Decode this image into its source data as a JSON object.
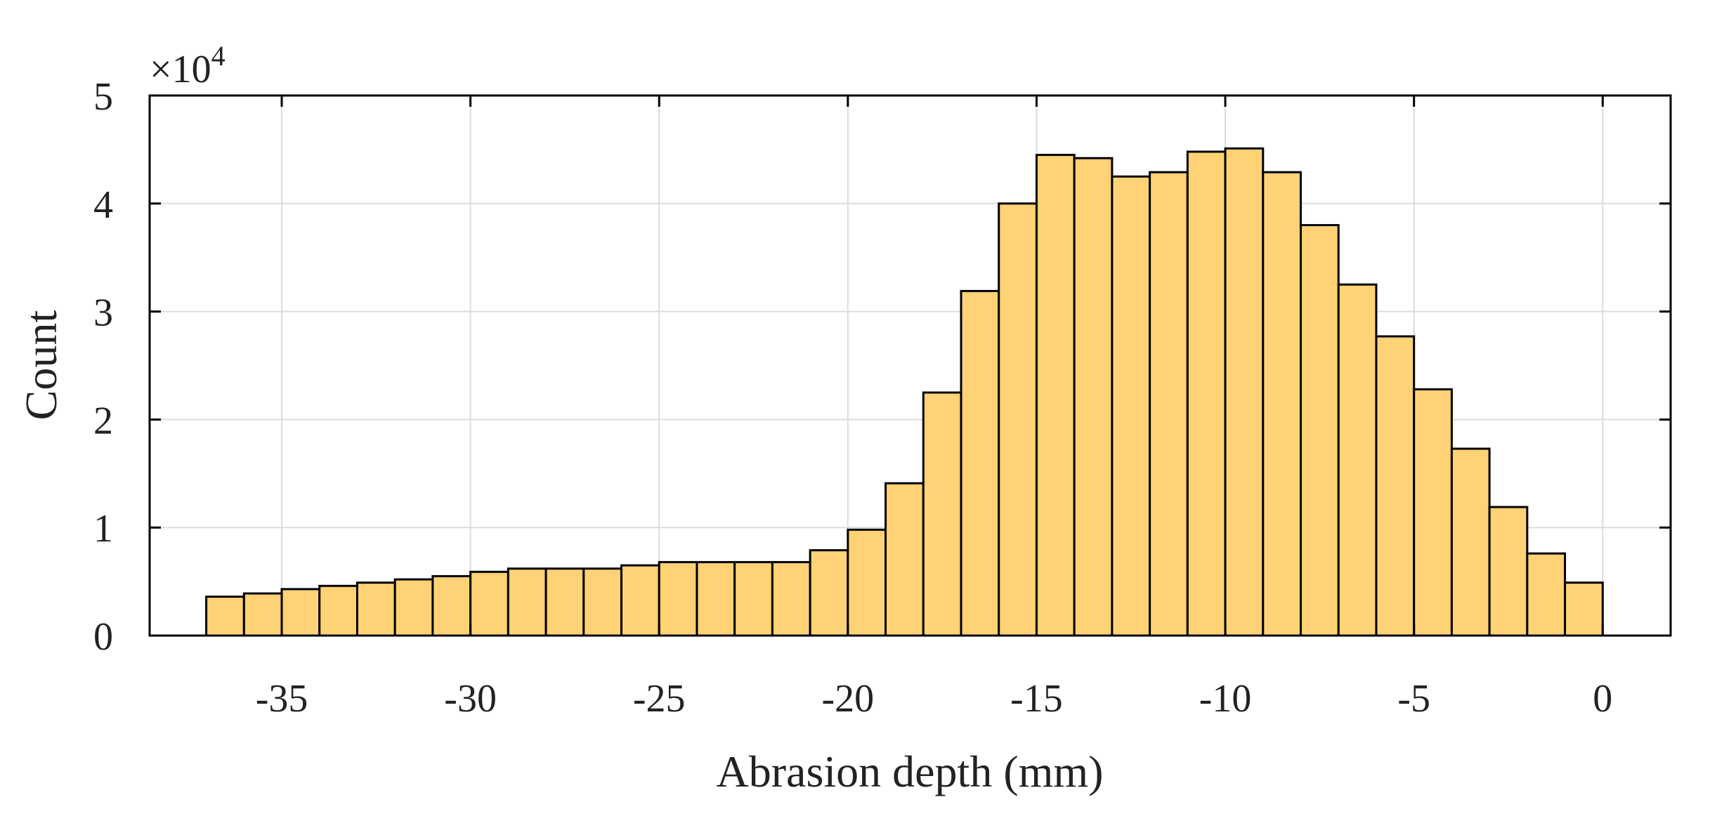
{
  "chart_data": {
    "type": "bar",
    "xlabel": "Abrasion depth (mm)",
    "ylabel": "Count",
    "y_multiplier": "×10",
    "y_multiplier_exponent": "4",
    "xlim": [
      -38.5,
      1.8
    ],
    "ylim": [
      0,
      5
    ],
    "grid": true,
    "bar_color": "#ffd275",
    "bar_edge_color": "#000000",
    "x_ticks": [
      {
        "value": -35,
        "label": "-35"
      },
      {
        "value": -30,
        "label": "-30"
      },
      {
        "value": -25,
        "label": "-25"
      },
      {
        "value": -20,
        "label": "-20"
      },
      {
        "value": -15,
        "label": "-15"
      },
      {
        "value": -10,
        "label": "-10"
      },
      {
        "value": -5,
        "label": "-5"
      },
      {
        "value": 0,
        "label": "0"
      }
    ],
    "y_ticks": [
      {
        "value": 0,
        "label": "0"
      },
      {
        "value": 1,
        "label": "1"
      },
      {
        "value": 2,
        "label": "2"
      },
      {
        "value": 3,
        "label": "3"
      },
      {
        "value": 4,
        "label": "4"
      },
      {
        "value": 5,
        "label": "5"
      }
    ],
    "bin_edges": [
      -37,
      -36,
      -35,
      -34,
      -33,
      -32,
      -31,
      -30,
      -29,
      -28,
      -27,
      -26,
      -25,
      -24,
      -23,
      -22,
      -21,
      -20,
      -19,
      -18,
      -17,
      -16,
      -15,
      -14,
      -13,
      -12,
      -11,
      -10,
      -9,
      -8,
      -7,
      -6,
      -5,
      -4,
      -3,
      -2,
      -1,
      0
    ],
    "values": [
      0.36,
      0.39,
      0.43,
      0.46,
      0.49,
      0.52,
      0.55,
      0.59,
      0.62,
      0.62,
      0.62,
      0.65,
      0.68,
      0.68,
      0.68,
      0.68,
      0.79,
      0.98,
      1.41,
      2.25,
      3.19,
      4.0,
      4.45,
      4.42,
      4.25,
      4.29,
      4.48,
      4.51,
      4.29,
      3.8,
      3.25,
      2.77,
      2.28,
      1.73,
      1.19,
      0.76,
      0.49
    ]
  }
}
